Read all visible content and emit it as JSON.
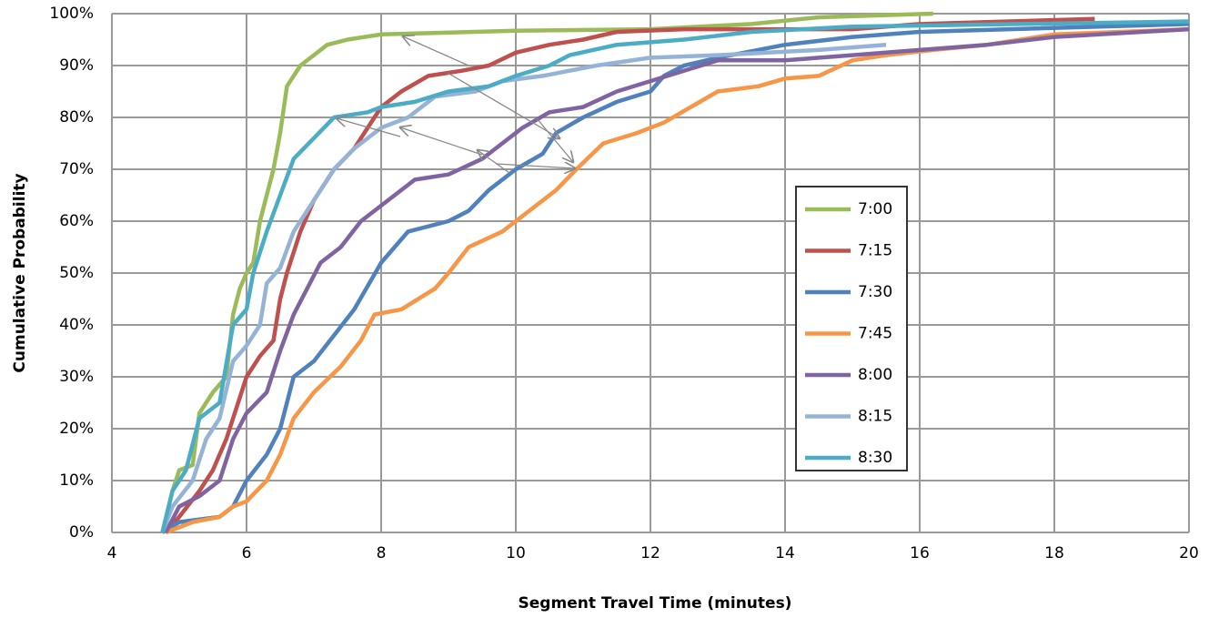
{
  "chart_data": {
    "type": "line",
    "x_label": "Segment Travel Time (minutes)",
    "y_label": "Cumulative Probability",
    "xlim": [
      4,
      20
    ],
    "xticks": [
      4,
      6,
      8,
      10,
      12,
      14,
      16,
      18,
      20
    ],
    "ylim": [
      0,
      100
    ],
    "yticks": [
      {
        "value": 0,
        "label": "0%"
      },
      {
        "value": 10,
        "label": "10%"
      },
      {
        "value": 20,
        "label": "20%"
      },
      {
        "value": 30,
        "label": "30%"
      },
      {
        "value": 40,
        "label": "40%"
      },
      {
        "value": 50,
        "label": "50%"
      },
      {
        "value": 60,
        "label": "60%"
      },
      {
        "value": 70,
        "label": "70%"
      },
      {
        "value": 80,
        "label": "80%"
      },
      {
        "value": 90,
        "label": "90%"
      },
      {
        "value": 100,
        "label": "100%"
      }
    ],
    "grid": true,
    "legend": "right",
    "series": [
      {
        "name": "7:00",
        "color": "#9bbb59",
        "x": [
          4.75,
          4.9,
          5.0,
          5.2,
          5.3,
          5.5,
          5.7,
          5.8,
          5.9,
          6.0,
          6.1,
          6.2,
          6.4,
          6.5,
          6.6,
          6.8,
          7.0,
          7.2,
          7.5,
          8.0,
          10,
          12,
          13.5,
          14.5,
          16.2
        ],
        "values": [
          0,
          8,
          12,
          13,
          23,
          27,
          30,
          42,
          47,
          50,
          52,
          60,
          70,
          77,
          86,
          90,
          92,
          94,
          95,
          96,
          96.7,
          97,
          98,
          99.3,
          100
        ]
      },
      {
        "name": "7:15",
        "color": "#c0504d",
        "x": [
          4.8,
          5.0,
          5.3,
          5.5,
          5.7,
          6.0,
          6.2,
          6.4,
          6.5,
          6.6,
          6.8,
          7.0,
          7.3,
          7.6,
          7.8,
          8.0,
          8.3,
          8.7,
          9.2,
          9.6,
          10,
          10.5,
          11,
          11.5,
          12.5,
          15,
          16,
          18.6
        ],
        "values": [
          0,
          3,
          8,
          12,
          18,
          30,
          34,
          37,
          45,
          50,
          58,
          64,
          70,
          74,
          78,
          82,
          85,
          88,
          89,
          90,
          92.5,
          94,
          95,
          96.5,
          97,
          97,
          98,
          99
        ]
      },
      {
        "name": "7:30",
        "color": "#4f81bd",
        "x": [
          4.75,
          5,
          5.6,
          5.8,
          6.0,
          6.3,
          6.5,
          6.7,
          7.0,
          7.3,
          7.6,
          8.0,
          8.2,
          8.4,
          9.0,
          9.3,
          9.6,
          10.0,
          10.4,
          10.6,
          11.0,
          11.5,
          12.0,
          12.2,
          12.5,
          13,
          14,
          15,
          16,
          20
        ],
        "values": [
          0,
          2,
          3,
          5,
          10,
          15,
          20,
          30,
          33,
          38,
          43,
          52,
          55,
          58,
          60,
          62,
          66,
          70,
          73,
          77,
          80,
          83,
          85,
          88,
          90,
          91.5,
          94,
          95.5,
          96.5,
          98
        ]
      },
      {
        "name": "7:45",
        "color": "#f79646",
        "x": [
          4.8,
          5.2,
          5.6,
          5.8,
          6.0,
          6.3,
          6.5,
          6.7,
          7.0,
          7.4,
          7.7,
          7.9,
          8.3,
          8.8,
          9.0,
          9.3,
          9.8,
          10.2,
          10.6,
          10.9,
          11.3,
          11.8,
          12.2,
          12.6,
          13,
          13.6,
          14,
          14.5,
          15,
          15.5,
          16.2,
          17,
          18,
          20
        ],
        "values": [
          0,
          2,
          3,
          5,
          6,
          10,
          15,
          22,
          27,
          32,
          37,
          42,
          43,
          47,
          50,
          55,
          58,
          62,
          66,
          70,
          75,
          77,
          79,
          82,
          85,
          86,
          87.5,
          88,
          91,
          92,
          93,
          94,
          96,
          97
        ]
      },
      {
        "name": "8:00",
        "color": "#8064a2",
        "x": [
          4.8,
          5.0,
          5.3,
          5.6,
          5.8,
          6.0,
          6.3,
          6.5,
          6.7,
          6.9,
          7.1,
          7.4,
          7.7,
          8.2,
          8.5,
          9.0,
          9.5,
          9.8,
          10.1,
          10.5,
          11,
          11.5,
          12,
          12.5,
          13,
          14,
          15,
          16,
          17,
          18,
          20
        ],
        "values": [
          0,
          5,
          7,
          10,
          18,
          23,
          27,
          35,
          42,
          47,
          52,
          55,
          60,
          65,
          68,
          69,
          72,
          75,
          78,
          81,
          82,
          85,
          87,
          89,
          91,
          91,
          92,
          93,
          94,
          95.5,
          97
        ]
      },
      {
        "name": "8:15",
        "color": "#95b3d7",
        "x": [
          4.75,
          4.9,
          5.2,
          5.4,
          5.6,
          5.8,
          6.0,
          6.2,
          6.3,
          6.5,
          6.7,
          6.9,
          7.1,
          7.3,
          7.6,
          8.0,
          8.4,
          8.8,
          9.4,
          9.8,
          10.4,
          10.8,
          11.2,
          12,
          13,
          14.5,
          15.5
        ],
        "values": [
          0,
          5,
          10,
          18,
          22,
          33,
          36,
          40,
          48,
          51,
          58,
          62,
          66,
          70,
          74,
          78,
          80,
          84,
          85,
          87,
          88,
          89,
          90,
          91.5,
          92,
          93,
          94
        ]
      },
      {
        "name": "8:30",
        "color": "#4bacc6",
        "x": [
          4.75,
          4.9,
          5.1,
          5.3,
          5.6,
          5.8,
          6.0,
          6.1,
          6.3,
          6.5,
          6.7,
          7.0,
          7.3,
          7.8,
          8.0,
          8.5,
          9.0,
          9.6,
          10,
          10.5,
          10.8,
          11.5,
          12.5,
          13.5,
          15,
          20
        ],
        "values": [
          0,
          8,
          12,
          22,
          25,
          40,
          43,
          50,
          58,
          65,
          72,
          76,
          80,
          81,
          82,
          83,
          85,
          86,
          88,
          90,
          92,
          94,
          95,
          96.5,
          97.5,
          98.5
        ]
      }
    ]
  }
}
